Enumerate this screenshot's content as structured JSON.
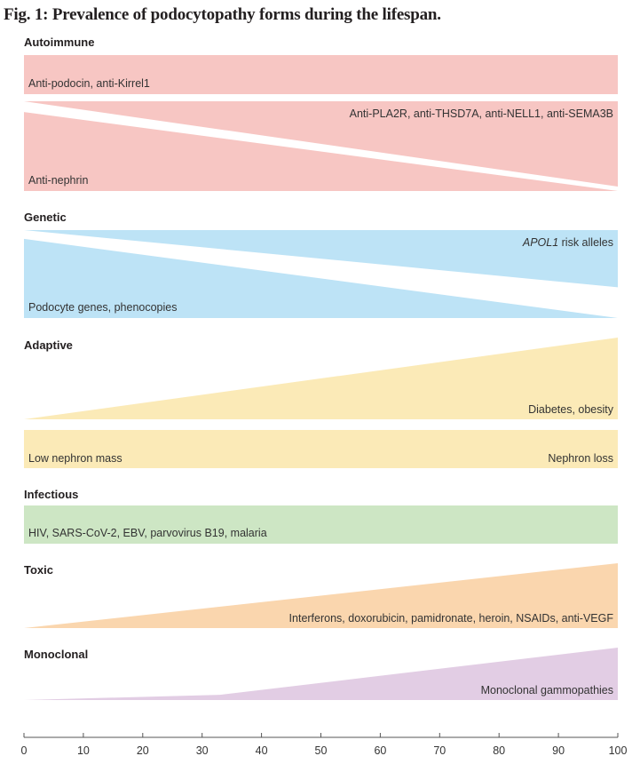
{
  "title": "Fig. 1: Prevalence of podocytopathy forms during the lifespan.",
  "chart_data": {
    "type": "area",
    "title": "Fig. 1: Prevalence of podocytopathy forms during the lifespan.",
    "xlabel": "",
    "ylabel": "",
    "xlim": [
      0,
      100
    ],
    "x_ticks": [
      0,
      10,
      20,
      30,
      40,
      50,
      60,
      70,
      80,
      90,
      100
    ],
    "colors": {
      "autoimmune": "#f7c6c3",
      "genetic": "#bde3f6",
      "adaptive": "#fbeab7",
      "infectious": "#cde6c4",
      "toxic": "#fad6ae",
      "monoclonal": "#e2cde4"
    },
    "categories": [
      {
        "name": "Autoimmune",
        "color_key": "autoimmune",
        "series": [
          {
            "label": "Anti-podocin, anti-Kirrel1",
            "italic": "",
            "text": "Anti-podocin, anti-Kirrel1",
            "label_align": "left",
            "shape": "band",
            "x": [
              0,
              100
            ],
            "relative_prevalence": [
              1.0,
              1.0
            ]
          },
          {
            "label": "Anti-PLA2R, anti-THSD7A, anti-NELL1, anti-SEMA3B",
            "italic": "",
            "text": "Anti-PLA2R, anti-THSD7A, anti-NELL1, anti-SEMA3B",
            "label_align": "right",
            "shape": "increasing",
            "x": [
              0,
              100
            ],
            "relative_prevalence": [
              0.0,
              0.95
            ]
          },
          {
            "label": "Anti-nephrin",
            "italic": "",
            "text": "Anti-nephrin",
            "label_align": "left",
            "shape": "decreasing",
            "x": [
              0,
              100
            ],
            "relative_prevalence": [
              0.88,
              0.0
            ]
          }
        ]
      },
      {
        "name": "Genetic",
        "color_key": "genetic",
        "series": [
          {
            "label": "APOL1 risk alleles",
            "italic": "APOL1",
            "text": " risk alleles",
            "label_align": "right",
            "shape": "increasing",
            "x": [
              0,
              100
            ],
            "relative_prevalence": [
              0.0,
              0.65
            ]
          },
          {
            "label": "Podocyte genes, phenocopies",
            "italic": "",
            "text": "Podocyte genes, phenocopies",
            "label_align": "left",
            "shape": "decreasing",
            "x": [
              0,
              100
            ],
            "relative_prevalence": [
              0.9,
              0.0
            ]
          }
        ]
      },
      {
        "name": "Adaptive",
        "color_key": "adaptive",
        "series": [
          {
            "label": "Diabetes, obesity",
            "italic": "",
            "text": "Diabetes, obesity",
            "label_align": "right",
            "shape": "increasing",
            "x": [
              0,
              100
            ],
            "relative_prevalence": [
              0.0,
              1.0
            ]
          },
          {
            "label": "Low nephron mass",
            "italic": "",
            "text": "Low nephron mass",
            "label_align": "left",
            "shape": "band",
            "x": [
              0,
              100
            ],
            "relative_prevalence": [
              1.0,
              1.0
            ]
          },
          {
            "label": "Nephron loss",
            "italic": "",
            "text": "Nephron loss",
            "label_align": "right",
            "shape": "band",
            "x": [
              0,
              100
            ],
            "relative_prevalence": [
              1.0,
              1.0
            ]
          }
        ]
      },
      {
        "name": "Infectious",
        "color_key": "infectious",
        "series": [
          {
            "label": "HIV, SARS-CoV-2, EBV, parvovirus B19, malaria",
            "italic": "",
            "text": "HIV, SARS-CoV-2, EBV, parvovirus B19, malaria",
            "label_align": "left",
            "shape": "band",
            "x": [
              0,
              100
            ],
            "relative_prevalence": [
              1.0,
              1.0
            ]
          }
        ]
      },
      {
        "name": "Toxic",
        "color_key": "toxic",
        "series": [
          {
            "label": "Interferons, doxorubicin, pamidronate, heroin, NSAIDs, anti-VEGF",
            "italic": "",
            "text": "Interferons, doxorubicin, pamidronate, heroin, NSAIDs, anti-VEGF",
            "label_align": "right",
            "shape": "increasing",
            "x": [
              0,
              100
            ],
            "relative_prevalence": [
              0.0,
              1.0
            ]
          }
        ]
      },
      {
        "name": "Monoclonal",
        "color_key": "monoclonal",
        "series": [
          {
            "label": "Monoclonal gammopathies",
            "italic": "",
            "text": "Monoclonal gammopathies",
            "label_align": "right",
            "shape": "increasing",
            "x": [
              0,
              33,
              100
            ],
            "relative_prevalence": [
              0.0,
              0.1,
              1.0
            ]
          }
        ]
      }
    ]
  }
}
